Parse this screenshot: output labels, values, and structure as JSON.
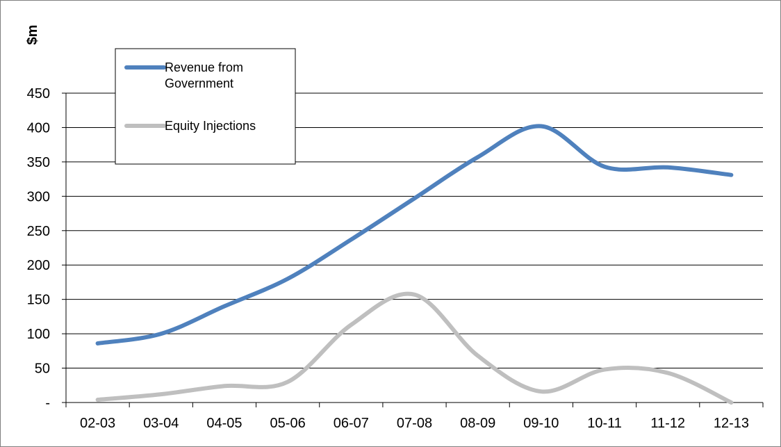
{
  "chart_data": {
    "type": "line",
    "ylabel": "$m",
    "categories": [
      "02-03",
      "03-04",
      "04-05",
      "05-06",
      "06-07",
      "07-08",
      "08-09",
      "09-10",
      "10-11",
      "11-12",
      "12-13"
    ],
    "ylim": [
      0,
      450
    ],
    "yticks": [
      {
        "value": 0,
        "label": "-"
      },
      {
        "value": 50,
        "label": "50"
      },
      {
        "value": 100,
        "label": "100"
      },
      {
        "value": 150,
        "label": "150"
      },
      {
        "value": 200,
        "label": "200"
      },
      {
        "value": 250,
        "label": "250"
      },
      {
        "value": 300,
        "label": "300"
      },
      {
        "value": 350,
        "label": "350"
      },
      {
        "value": 400,
        "label": "400"
      },
      {
        "value": 450,
        "label": "450"
      }
    ],
    "grid": true,
    "legend_position": "top-left",
    "series": [
      {
        "name": "Revenue from Government",
        "color": "#4f81bd",
        "values": [
          86,
          100,
          140,
          180,
          237,
          297,
          357,
          402,
          343,
          342,
          331
        ]
      },
      {
        "name": "Equity Injections",
        "color": "#bfbfbf",
        "values": [
          4,
          12,
          24,
          30,
          113,
          157,
          68,
          16,
          48,
          43,
          0
        ]
      }
    ],
    "legend_labels": [
      [
        "Revenue from",
        "Government"
      ],
      [
        "Equity Injections"
      ]
    ]
  }
}
